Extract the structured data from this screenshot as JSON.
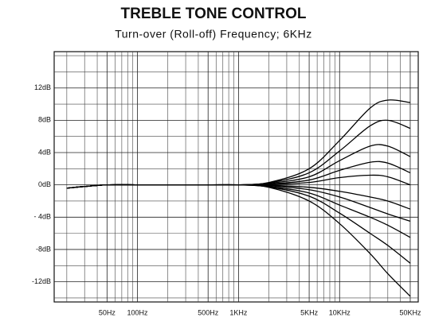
{
  "chart_data": {
    "type": "line",
    "title": "TREBLE TONE CONTROL",
    "subtitle": "Turn-over (Roll-off) Frequency; 6KHz",
    "log_x": true,
    "grid": true,
    "xlim": [
      15,
      60000
    ],
    "ylim": [
      -14.5,
      16.5
    ],
    "xticks": [
      {
        "value": 50,
        "label": "50Hz"
      },
      {
        "value": 100,
        "label": "100Hz"
      },
      {
        "value": 500,
        "label": "500Hz"
      },
      {
        "value": 1000,
        "label": "1KHz"
      },
      {
        "value": 5000,
        "label": "5KHz"
      },
      {
        "value": 10000,
        "label": "10KHz"
      },
      {
        "value": 50000,
        "label": "50KHz"
      }
    ],
    "x_minor_ticks": [
      20,
      30,
      40,
      60,
      70,
      80,
      90,
      200,
      300,
      400,
      600,
      700,
      800,
      900,
      2000,
      3000,
      4000,
      6000,
      7000,
      8000,
      9000,
      20000,
      30000,
      40000
    ],
    "yticks": [
      {
        "value": 12,
        "label": "12dB"
      },
      {
        "value": 8,
        "label": "8dB"
      },
      {
        "value": 4,
        "label": "4dB"
      },
      {
        "value": 0,
        "label": "0dB"
      },
      {
        "value": -4,
        "label": "- 4dB"
      },
      {
        "value": -8,
        "label": "-8dB"
      },
      {
        "value": -12,
        "label": "-12dB"
      }
    ],
    "y_minor_ticks": [
      -14,
      -10,
      -6,
      -2,
      2,
      6,
      10,
      14,
      16
    ],
    "x": [
      20,
      30,
      50,
      100,
      200,
      500,
      1000,
      2000,
      5000,
      10000,
      20000,
      30000,
      50000
    ],
    "series": [
      {
        "color": "#000",
        "values": [
          -0.4,
          -0.2,
          0,
          0,
          0,
          0,
          0,
          0.3,
          2,
          5.5,
          9.5,
          10.5,
          10.2
        ]
      },
      {
        "color": "#000",
        "values": [
          -0.4,
          -0.2,
          0,
          0,
          0,
          0,
          0,
          0.25,
          1.5,
          4.2,
          7.3,
          8,
          7
        ]
      },
      {
        "color": "#000",
        "values": [
          -0.4,
          -0.2,
          0,
          0,
          0,
          0,
          0,
          0.2,
          1,
          3,
          4.8,
          4.8,
          3.5
        ]
      },
      {
        "color": "#000",
        "values": [
          -0.4,
          -0.2,
          0,
          0,
          0,
          0,
          0,
          0.1,
          0.6,
          1.8,
          2.8,
          2.7,
          1.5
        ]
      },
      {
        "color": "#000",
        "values": [
          -0.4,
          -0.2,
          0,
          0,
          0,
          0,
          0,
          0.05,
          0.3,
          0.9,
          1.2,
          1,
          0
        ]
      },
      {
        "color": "#000",
        "values": [
          -0.4,
          -0.2,
          0,
          0,
          0,
          0,
          0,
          -0.05,
          -0.3,
          -0.8,
          -1.5,
          -2,
          -3
        ]
      },
      {
        "color": "#000",
        "values": [
          -0.4,
          -0.2,
          0,
          0,
          0,
          0,
          0,
          -0.1,
          -0.6,
          -1.5,
          -2.8,
          -3.6,
          -4.5
        ]
      },
      {
        "color": "#000",
        "values": [
          -0.4,
          -0.2,
          0,
          0,
          0,
          0,
          0,
          -0.2,
          -1,
          -2.5,
          -4,
          -5,
          -6.5
        ]
      },
      {
        "color": "#000",
        "values": [
          -0.4,
          -0.2,
          0,
          0,
          0,
          0,
          0,
          -0.25,
          -1.4,
          -3.5,
          -6,
          -7.5,
          -9.7
        ]
      },
      {
        "color": "#000",
        "values": [
          -0.4,
          -0.2,
          0,
          0,
          0,
          0,
          0,
          -0.3,
          -2,
          -4.8,
          -8.5,
          -11,
          -13.8
        ]
      }
    ]
  }
}
